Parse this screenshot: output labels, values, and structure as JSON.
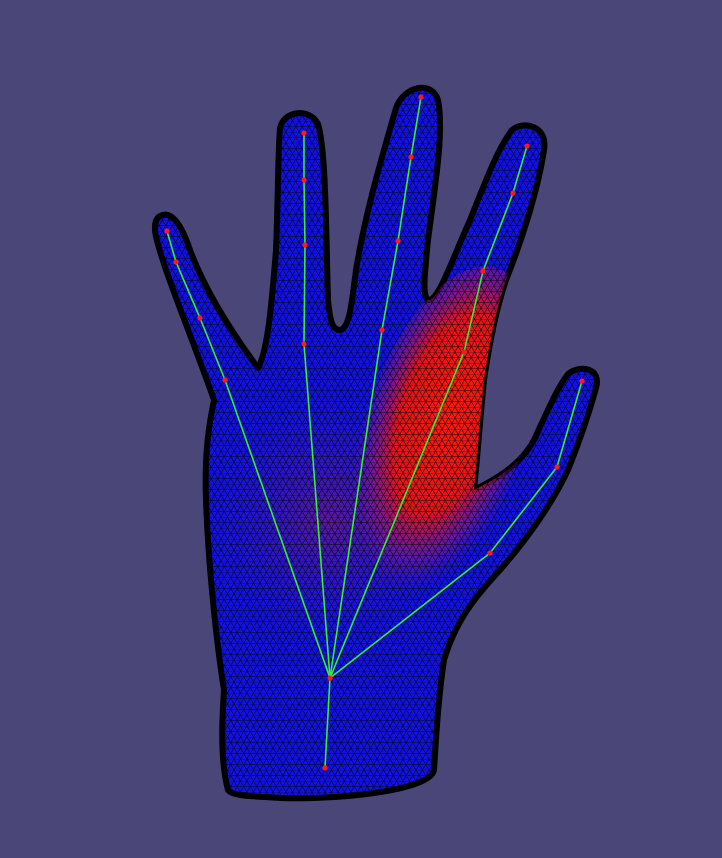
{
  "viewport": {
    "background_color": "#4a4778"
  },
  "mesh": {
    "base_color": "#1212e6",
    "weight_color_high": "#ff1a0a",
    "weight_color_mid": "#8a1a8a",
    "wireframe_color": "#000000"
  },
  "skeleton": {
    "bone_color": "#33ee33",
    "joint_color": "#ff1a1a",
    "joint_count": 22,
    "bone_count": 21
  }
}
